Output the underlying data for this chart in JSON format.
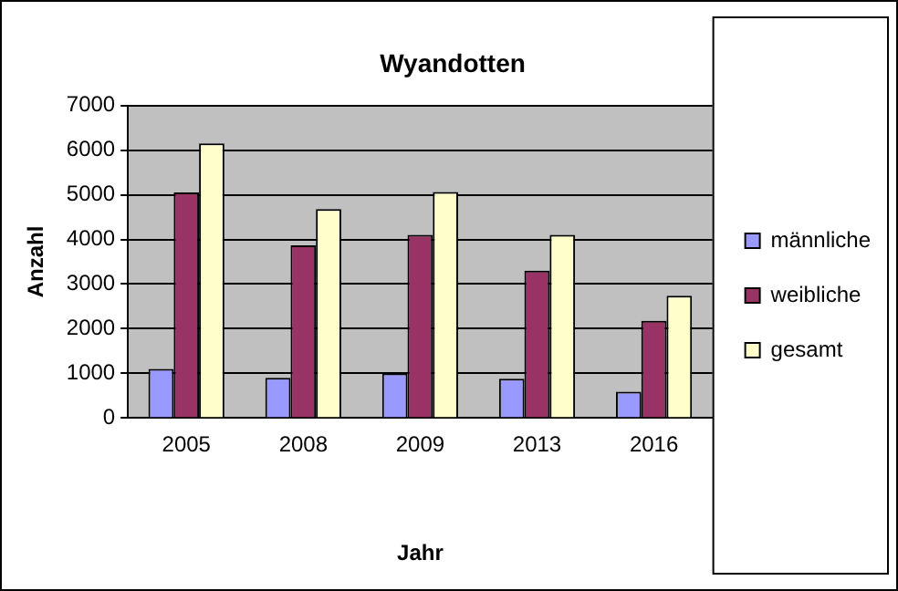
{
  "chart_data": {
    "type": "bar",
    "title": "Wyandotten",
    "xlabel": "Jahr",
    "ylabel": "Anzahl",
    "categories": [
      "2005",
      "2008",
      "2009",
      "2013",
      "2016"
    ],
    "series": [
      {
        "name": "männliche",
        "color": "#9999ff",
        "values": [
          1100,
          900,
          1000,
          880,
          590
        ]
      },
      {
        "name": "weibliche",
        "color": "#993366",
        "values": [
          5050,
          3870,
          4100,
          3300,
          2180
        ]
      },
      {
        "name": "gesamt",
        "color": "#ffffcc",
        "values": [
          6150,
          4680,
          5060,
          4100,
          2740
        ]
      }
    ],
    "ylim": [
      0,
      7000
    ],
    "yticks": [
      0,
      1000,
      2000,
      3000,
      4000,
      5000,
      6000,
      7000
    ],
    "grid": "y",
    "legend": "right"
  }
}
